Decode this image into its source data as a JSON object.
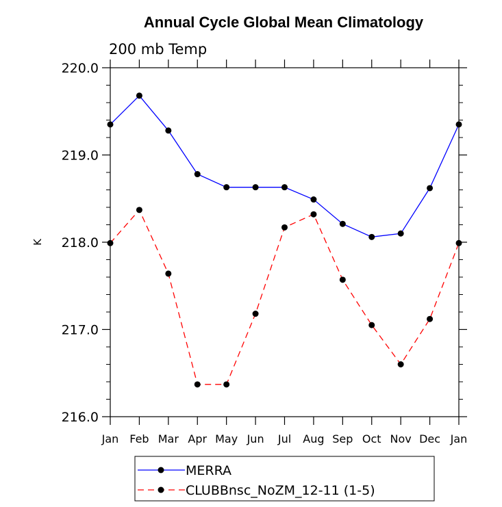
{
  "chart_data": {
    "type": "line",
    "title": "Annual Cycle Global Mean Climatology",
    "subtitle": "200 mb Temp",
    "xlabel": "",
    "ylabel": "K",
    "categories": [
      "Jan",
      "Feb",
      "Mar",
      "Apr",
      "May",
      "Jun",
      "Jul",
      "Aug",
      "Sep",
      "Oct",
      "Nov",
      "Dec",
      "Jan"
    ],
    "ylim": [
      216.0,
      220.0
    ],
    "yticks": [
      "216.0",
      "217.0",
      "218.0",
      "219.0",
      "220.0"
    ],
    "grid": false,
    "legend_position": "bottom",
    "series": [
      {
        "name": "MERRA",
        "color": "#0000ff",
        "dash": "solid",
        "values": [
          219.35,
          219.68,
          219.28,
          218.78,
          218.63,
          218.63,
          218.63,
          218.49,
          218.21,
          218.06,
          218.1,
          218.62,
          219.35
        ]
      },
      {
        "name": "CLUBBnsc_NoZM_12-11 (1-5)",
        "color": "#ff0000",
        "dash": "dashed",
        "values": [
          217.99,
          218.37,
          217.64,
          216.37,
          216.37,
          217.18,
          218.17,
          218.32,
          217.57,
          217.05,
          216.6,
          217.12,
          217.99
        ]
      }
    ]
  }
}
